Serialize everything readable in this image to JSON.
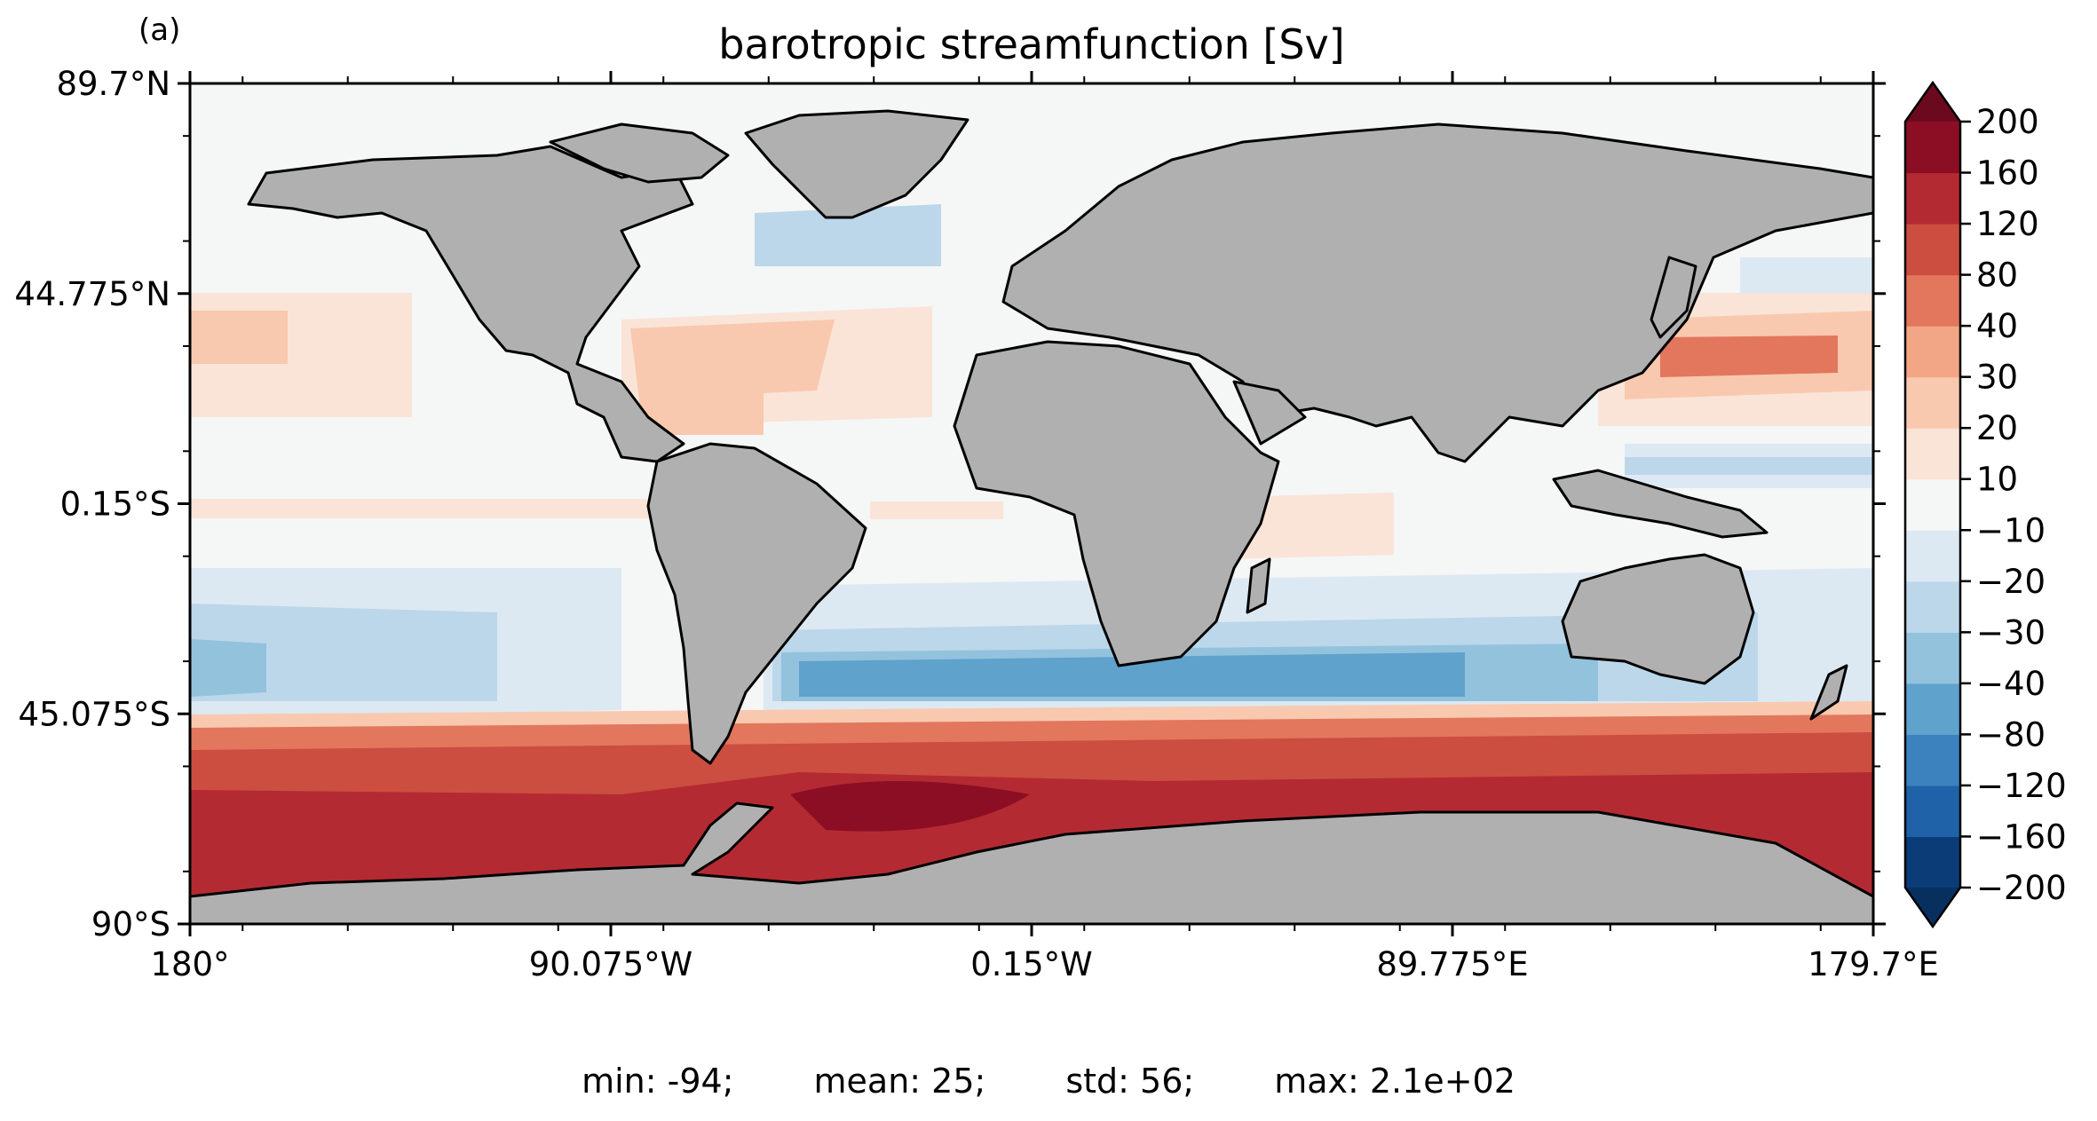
{
  "panel_label": "(a)",
  "chart_data": {
    "type": "heatmap",
    "title": "barotropic streamfunction [Sv]",
    "xlabel": "",
    "ylabel": "",
    "projection": "PlateCarree",
    "xlim": [
      -180,
      179.7
    ],
    "ylim": [
      -90,
      89.7
    ],
    "x_ticks": [
      -180,
      -90.075,
      -0.15,
      89.775,
      179.7
    ],
    "x_tick_labels": [
      "180°",
      "90.075°W",
      "0.15°W",
      "89.775°E",
      "179.7°E"
    ],
    "y_ticks": [
      89.7,
      44.775,
      -0.15,
      -45.075,
      -90
    ],
    "y_tick_labels": [
      "89.7°N",
      "44.775°N",
      "0.15°S",
      "45.075°S",
      "90°S"
    ],
    "colorbar": {
      "levels": [
        -200,
        -160,
        -120,
        -80,
        -40,
        -30,
        -20,
        -10,
        10,
        20,
        30,
        40,
        80,
        120,
        160,
        200
      ],
      "tick_labels": [
        "−200",
        "−160",
        "−120",
        "−80",
        "−40",
        "−30",
        "−20",
        "−10",
        "10",
        "20",
        "30",
        "40",
        "80",
        "120",
        "160",
        "200"
      ],
      "colors": [
        "#0b3c78",
        "#1f62a8",
        "#3b82bf",
        "#5fa2cc",
        "#93c2dd",
        "#bcd7ea",
        "#dde9f2",
        "#f5f6f6",
        "#fae4d8",
        "#f8c9ae",
        "#f3a685",
        "#e2775d",
        "#cc4e40",
        "#b42a33",
        "#8c0e25"
      ],
      "extend": "both",
      "over_color": "#6b0a1e",
      "under_color": "#08305f"
    },
    "land_color": "#b0b0b0",
    "statistics": {
      "min": "min: -94;",
      "mean": "mean: 25;",
      "std": "std: 56;",
      "max": "max: 2.1e+02"
    }
  }
}
